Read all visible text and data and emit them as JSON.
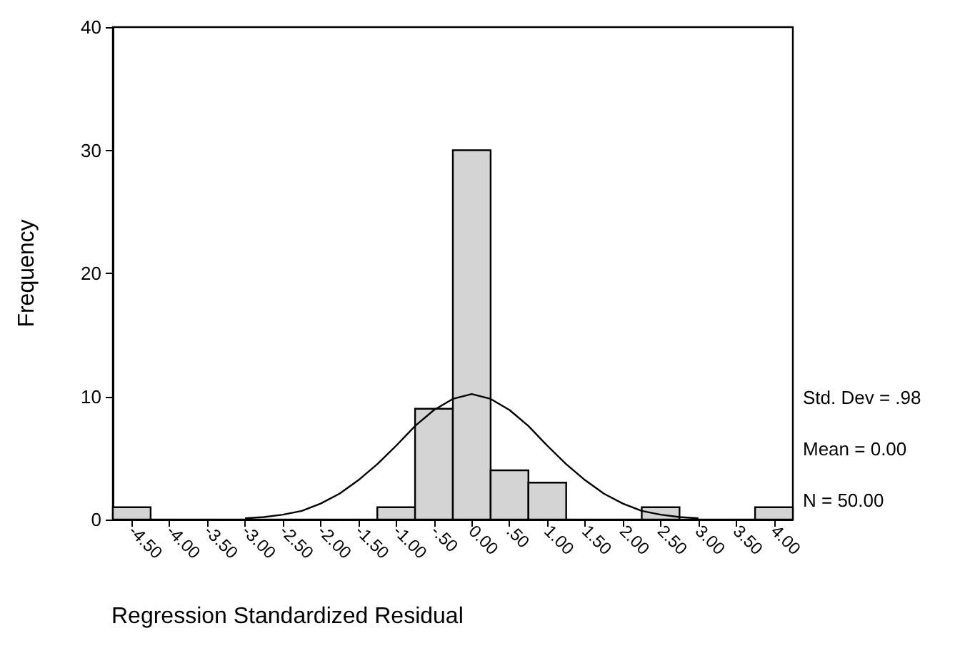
{
  "chart_data": {
    "type": "histogram",
    "xlabel": "Regression Standardized Residual",
    "ylabel": "Frequency",
    "bins": [
      -4.75,
      -4.25,
      -3.75,
      -3.25,
      -2.75,
      -2.25,
      -1.75,
      -1.25,
      -0.75,
      -0.25,
      0.25,
      0.75,
      1.25,
      1.75,
      2.25,
      2.75,
      3.25,
      3.75,
      4.25
    ],
    "values": [
      1,
      0,
      0,
      0,
      0,
      0,
      0,
      1,
      9,
      30,
      4,
      3,
      0,
      0,
      1,
      0,
      0,
      1
    ],
    "color": "#d4d4d4",
    "xlim": [
      -4.75,
      4.25
    ],
    "xticks": [
      {
        "value": -4.5,
        "label": "-4.50"
      },
      {
        "value": -4,
        "label": "-4.00"
      },
      {
        "value": -3.5,
        "label": "-3.50"
      },
      {
        "value": -3,
        "label": "-3.00"
      },
      {
        "value": -2.5,
        "label": "-2.50"
      },
      {
        "value": -2,
        "label": "-2.00"
      },
      {
        "value": -1.5,
        "label": "-1.50"
      },
      {
        "value": -1,
        "label": "-1.00"
      },
      {
        "value": -0.5,
        "label": "-.50"
      },
      {
        "value": 0,
        "label": "0.00"
      },
      {
        "value": 0.5,
        "label": ".50"
      },
      {
        "value": 1,
        "label": "1.00"
      },
      {
        "value": 1.5,
        "label": "1.50"
      },
      {
        "value": 2,
        "label": "2.00"
      },
      {
        "value": 2.5,
        "label": "2.50"
      },
      {
        "value": 3,
        "label": "3.00"
      },
      {
        "value": 3.5,
        "label": "3.50"
      },
      {
        "value": 4,
        "label": "4.00"
      }
    ],
    "ylim": [
      0,
      40
    ],
    "yticks": [
      0,
      10,
      20,
      30,
      40
    ],
    "grid": false,
    "series": [
      {
        "type": "line",
        "color": "#000000",
        "marker": "none",
        "line_style": "solid",
        "x": [
          -3,
          -2.75,
          -2.5,
          -2.25,
          -2,
          -1.75,
          -1.5,
          -1.25,
          -1,
          -0.75,
          -0.5,
          -0.25,
          0,
          0.25,
          0.5,
          0.75,
          1,
          1.25,
          1.5,
          1.75,
          2,
          2.25,
          2.5,
          2.75,
          3
        ],
        "values": [
          0.1,
          0.2,
          0.4,
          0.7,
          1.3,
          2.1,
          3.2,
          4.5,
          6.0,
          7.6,
          8.9,
          9.8,
          10.2,
          9.8,
          8.9,
          7.6,
          6.0,
          4.5,
          3.2,
          2.1,
          1.3,
          0.7,
          0.4,
          0.2,
          0.1
        ]
      }
    ],
    "annotations": [
      "Std. Dev = .98",
      "Mean = 0.00",
      "N = 50.00"
    ]
  }
}
